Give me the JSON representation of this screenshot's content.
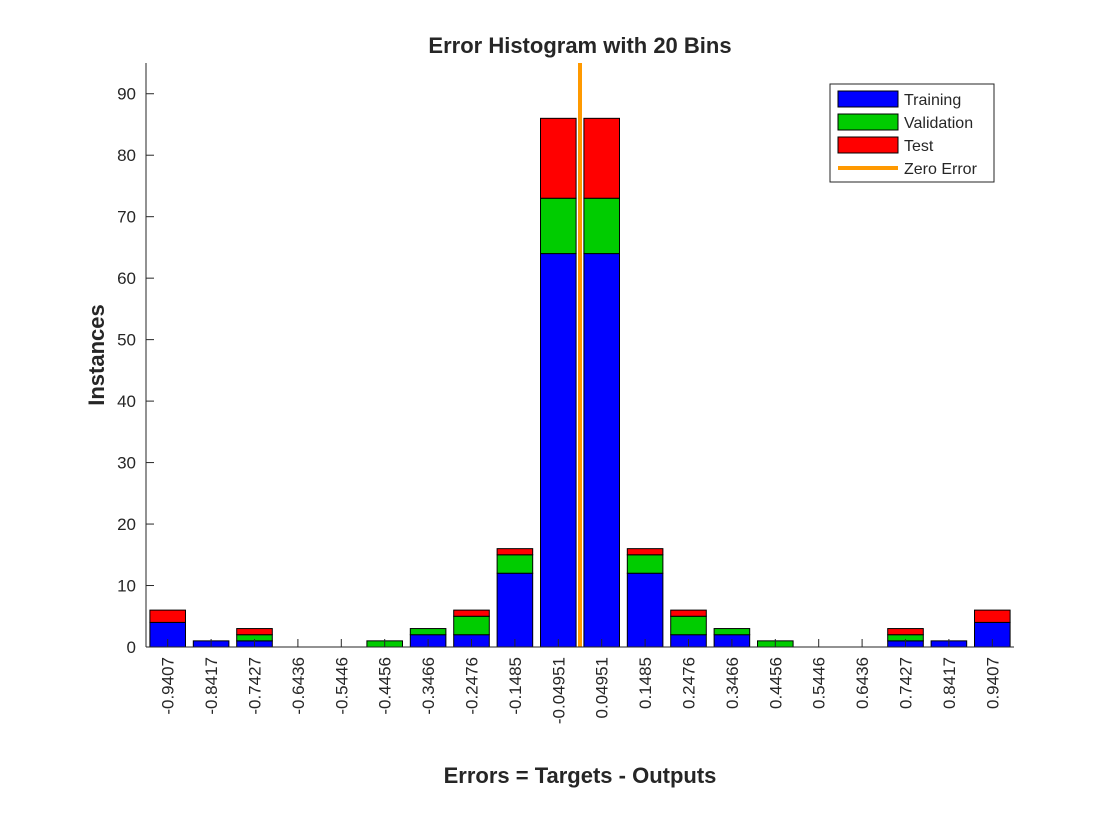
{
  "chart_data": {
    "type": "bar",
    "stacked": true,
    "title": "Error Histogram with 20 Bins",
    "xlabel": "Errors = Targets - Outputs",
    "ylabel": "Instances",
    "ylim": [
      0,
      95
    ],
    "yticks": [
      0,
      10,
      20,
      30,
      40,
      50,
      60,
      70,
      80,
      90
    ],
    "categories": [
      "-0.9407",
      "-0.8417",
      "-0.7427",
      "-0.6436",
      "-0.5446",
      "-0.4456",
      "-0.3466",
      "-0.2476",
      "-0.1485",
      "-0.04951",
      "0.04951",
      "0.1485",
      "0.2476",
      "0.3466",
      "0.4456",
      "0.5446",
      "0.6436",
      "0.7427",
      "0.8417",
      "0.9407"
    ],
    "series": [
      {
        "name": "Training",
        "color": "#0000ff",
        "values": [
          4,
          1,
          1,
          0,
          0,
          0,
          2,
          2,
          12,
          64,
          64,
          12,
          2,
          2,
          0,
          0,
          0,
          1,
          1,
          4
        ]
      },
      {
        "name": "Validation",
        "color": "#00cc00",
        "values": [
          0,
          0,
          1,
          0,
          0,
          1,
          1,
          3,
          3,
          9,
          9,
          3,
          3,
          1,
          1,
          0,
          0,
          1,
          0,
          0
        ]
      },
      {
        "name": "Test",
        "color": "#ff0000",
        "values": [
          2,
          0,
          1,
          0,
          0,
          0,
          0,
          1,
          1,
          13,
          13,
          1,
          1,
          0,
          0,
          0,
          0,
          1,
          0,
          2
        ]
      }
    ],
    "reference_line": {
      "name": "Zero Error",
      "x": 0,
      "color": "#ff9900"
    },
    "grid": false,
    "legend": "top-right"
  }
}
